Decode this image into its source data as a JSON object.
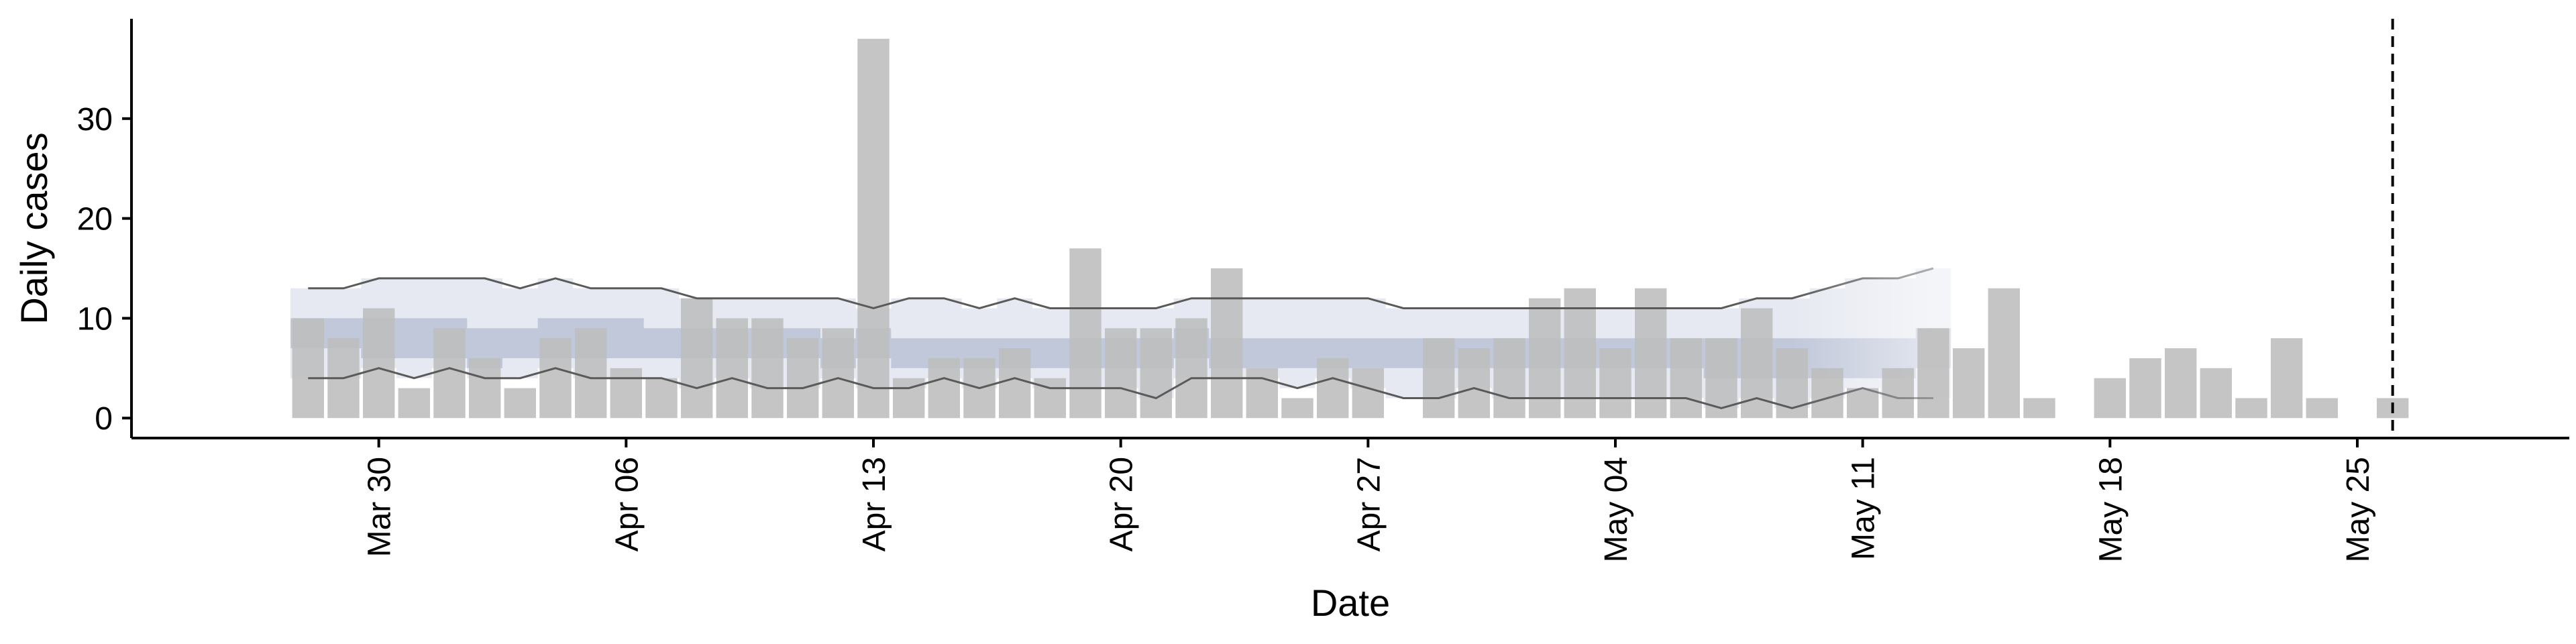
{
  "chart_data": {
    "type": "bar",
    "xlabel": "Date",
    "ylabel": "Daily cases",
    "x_start": "2020-03-28",
    "xlim": [
      "2020-03-23",
      "2020-05-31"
    ],
    "ylim": [
      -2,
      40
    ],
    "yticks": [
      0,
      10,
      20,
      30
    ],
    "xticks": [
      {
        "date": "2020-03-30",
        "label": "Mar 30"
      },
      {
        "date": "2020-04-06",
        "label": "Apr 06"
      },
      {
        "date": "2020-04-13",
        "label": "Apr 13"
      },
      {
        "date": "2020-04-20",
        "label": "Apr 20"
      },
      {
        "date": "2020-04-27",
        "label": "Apr 27"
      },
      {
        "date": "2020-05-04",
        "label": "May 04"
      },
      {
        "date": "2020-05-11",
        "label": "May 11"
      },
      {
        "date": "2020-05-18",
        "label": "May 18"
      },
      {
        "date": "2020-05-25",
        "label": "May 25"
      }
    ],
    "reported_cases": [
      10,
      8,
      11,
      3,
      9,
      6,
      3,
      8,
      9,
      5,
      4,
      12,
      10,
      10,
      8,
      9,
      38,
      4,
      6,
      6,
      7,
      4,
      17,
      9,
      9,
      10,
      15,
      5,
      2,
      6,
      5,
      null,
      8,
      7,
      8,
      12,
      13,
      7,
      13,
      8,
      8,
      11,
      7,
      5,
      3,
      5,
      9,
      7,
      13,
      2,
      null,
      4,
      6,
      7,
      5,
      2,
      8,
      2,
      null,
      2
    ],
    "estimate_end": "2020-05-13",
    "estimate_fade_start": "2020-05-09",
    "band_90_upper": [
      13,
      13,
      14,
      14,
      14,
      14,
      13,
      14,
      13,
      13,
      13,
      12,
      12,
      12,
      12,
      12,
      11,
      12,
      12,
      11,
      12,
      11,
      11,
      11,
      11,
      12,
      12,
      12,
      12,
      12,
      12,
      11,
      11,
      11,
      11,
      11,
      11,
      11,
      11,
      11,
      11,
      12,
      12,
      13,
      14,
      14,
      15
    ],
    "band_90_lower": [
      4,
      4,
      5,
      4,
      5,
      4,
      4,
      5,
      4,
      4,
      4,
      3,
      4,
      3,
      3,
      4,
      3,
      3,
      4,
      3,
      4,
      3,
      3,
      3,
      2,
      4,
      4,
      4,
      3,
      4,
      3,
      2,
      2,
      3,
      2,
      2,
      2,
      2,
      2,
      2,
      1,
      2,
      1,
      2,
      3,
      2,
      2
    ],
    "band_50_upper": [
      10,
      10,
      10,
      10,
      10,
      9,
      9,
      10,
      10,
      10,
      9,
      9,
      9,
      9,
      9,
      8,
      9,
      8,
      8,
      8,
      8,
      8,
      8,
      8,
      8,
      9,
      8,
      8,
      8,
      8,
      8,
      8,
      8,
      8,
      8,
      8,
      8,
      8,
      8,
      8,
      8,
      8,
      8,
      8,
      8,
      8,
      9
    ],
    "band_50_lower": [
      7,
      7,
      6,
      6,
      6,
      5,
      6,
      6,
      6,
      6,
      6,
      6,
      6,
      6,
      6,
      5,
      6,
      5,
      5,
      5,
      5,
      5,
      5,
      5,
      5,
      6,
      5,
      5,
      5,
      5,
      5,
      5,
      5,
      5,
      5,
      5,
      5,
      5,
      5,
      5,
      4,
      4,
      4,
      4,
      4,
      4,
      5
    ],
    "vertical_line_date": "2020-05-26",
    "grid": false,
    "legend": "none",
    "colors": {
      "bars": "#bdbdbd",
      "band_90": "#e6e9f1",
      "band_50": "#c1c8da",
      "bound_lines": "#5a5a5a",
      "axis": "#000000",
      "vertical_line": "#000000"
    }
  }
}
